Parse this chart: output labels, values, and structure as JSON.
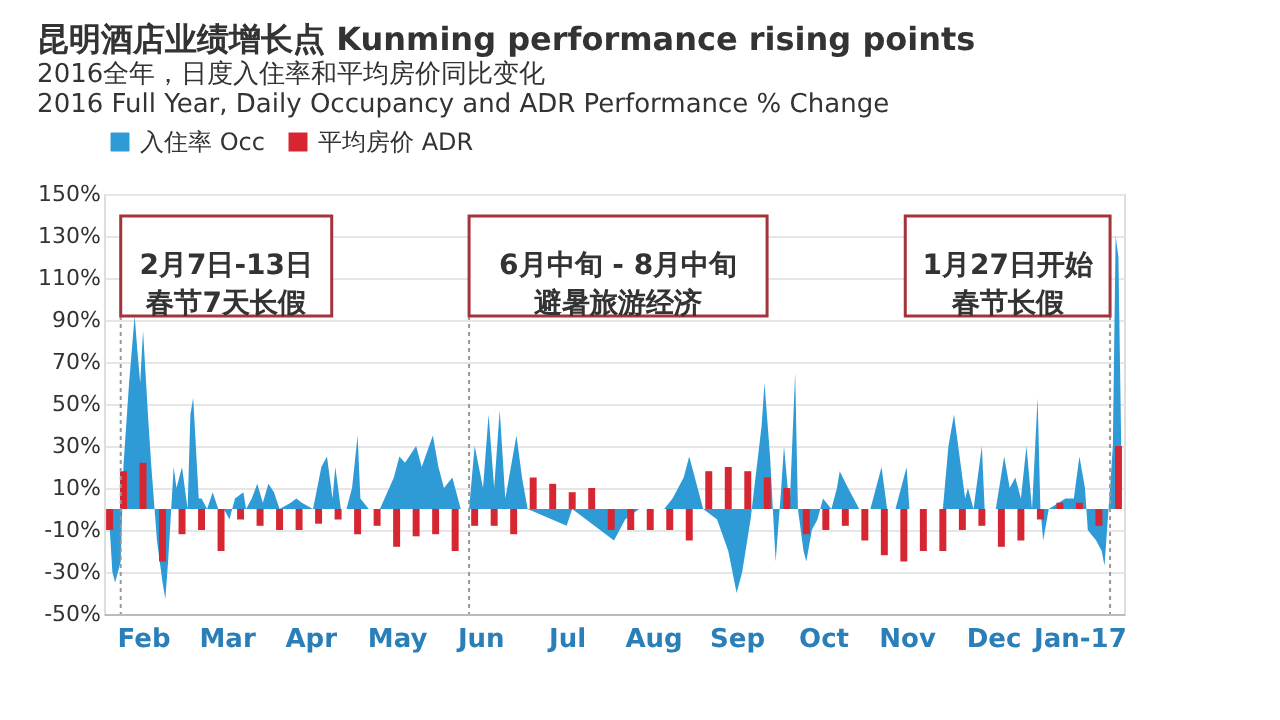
{
  "chart_data": {
    "type": "area",
    "title": "昆明酒店业绩增长点 Kunming performance rising points",
    "subtitle": "2016全年，日度入住率和平均房价同比变化\n2016 Full Year, Daily Occupancy and ADR Performance % Change",
    "xlim": [
      "2016-02-01",
      "2017-02-01"
    ],
    "xticks": [
      {
        "value": "2016-02-15",
        "label": "Feb"
      },
      {
        "value": "2016-03-16",
        "label": "Mar"
      },
      {
        "value": "2016-04-15",
        "label": "Apr"
      },
      {
        "value": "2016-05-16",
        "label": "May"
      },
      {
        "value": "2016-06-15",
        "label": "Jun"
      },
      {
        "value": "2016-07-16",
        "label": "Jul"
      },
      {
        "value": "2016-08-16",
        "label": "Aug"
      },
      {
        "value": "2016-09-15",
        "label": "Sep"
      },
      {
        "value": "2016-10-16",
        "label": "Oct"
      },
      {
        "value": "2016-11-15",
        "label": "Nov"
      },
      {
        "value": "2016-12-16",
        "label": "Dec"
      },
      {
        "value": "2017-01-16",
        "label": "Jan-17"
      }
    ],
    "ylim": [
      -50,
      150
    ],
    "yticks": [
      {
        "value": -50,
        "label": "-50%"
      },
      {
        "value": -30,
        "label": "-30%"
      },
      {
        "value": -10,
        "label": "-10%"
      },
      {
        "value": 10,
        "label": "10%"
      },
      {
        "value": 30,
        "label": "30%"
      },
      {
        "value": 50,
        "label": "50%"
      },
      {
        "value": 70,
        "label": "70%"
      },
      {
        "value": 90,
        "label": "90%"
      },
      {
        "value": 110,
        "label": "110%"
      },
      {
        "value": 130,
        "label": "130%"
      },
      {
        "value": 150,
        "label": "150%"
      }
    ],
    "grid": "y",
    "legend": "top",
    "series": [
      {
        "name": "入住率 Occ",
        "color": "#2e9bd6",
        "x": [
          "2016-02-03",
          "2016-02-04",
          "2016-02-05",
          "2016-02-07",
          "2016-02-08",
          "2016-02-10",
          "2016-02-12",
          "2016-02-13",
          "2016-02-14",
          "2016-02-15",
          "2016-02-17",
          "2016-02-18",
          "2016-02-20",
          "2016-02-22",
          "2016-02-23",
          "2016-02-24",
          "2016-02-26",
          "2016-02-27",
          "2016-02-29",
          "2016-03-02",
          "2016-03-03",
          "2016-03-04",
          "2016-03-06",
          "2016-03-07",
          "2016-03-09",
          "2016-03-11",
          "2016-03-13",
          "2016-03-15",
          "2016-03-17",
          "2016-03-19",
          "2016-03-22",
          "2016-03-23",
          "2016-03-25",
          "2016-03-27",
          "2016-03-29",
          "2016-03-31",
          "2016-04-02",
          "2016-04-04",
          "2016-04-08",
          "2016-04-10",
          "2016-04-12",
          "2016-04-16",
          "2016-04-19",
          "2016-04-21",
          "2016-04-23",
          "2016-04-24",
          "2016-04-26",
          "2016-04-28",
          "2016-04-30",
          "2016-05-02",
          "2016-05-03",
          "2016-05-06",
          "2016-05-10",
          "2016-05-15",
          "2016-05-17",
          "2016-05-19",
          "2016-05-23",
          "2016-05-25",
          "2016-05-29",
          "2016-05-31",
          "2016-06-02",
          "2016-06-05",
          "2016-06-08",
          "2016-06-11",
          "2016-06-13",
          "2016-06-16",
          "2016-06-18",
          "2016-06-20",
          "2016-06-22",
          "2016-06-24",
          "2016-06-26",
          "2016-06-28",
          "2016-06-30",
          "2016-07-02",
          "2016-07-16",
          "2016-07-18",
          "2016-08-02",
          "2016-08-06",
          "2016-08-11",
          "2016-08-20",
          "2016-08-23",
          "2016-08-25",
          "2016-08-27",
          "2016-08-29",
          "2016-09-01",
          "2016-09-03",
          "2016-09-08",
          "2016-09-12",
          "2016-09-15",
          "2016-09-17",
          "2016-09-20",
          "2016-09-24",
          "2016-09-25",
          "2016-09-27",
          "2016-09-29",
          "2016-10-01",
          "2016-10-02",
          "2016-10-04",
          "2016-10-06",
          "2016-10-07",
          "2016-10-09",
          "2016-10-10",
          "2016-10-12",
          "2016-10-14",
          "2016-10-16",
          "2016-10-19",
          "2016-10-21",
          "2016-10-22",
          "2016-10-25",
          "2016-10-27",
          "2016-10-29",
          "2016-11-02",
          "2016-11-04",
          "2016-11-06",
          "2016-11-08",
          "2016-11-11",
          "2016-11-13",
          "2016-11-15",
          "2016-11-16",
          "2016-11-28",
          "2016-11-30",
          "2016-12-02",
          "2016-12-04",
          "2016-12-06",
          "2016-12-07",
          "2016-12-09",
          "2016-12-12",
          "2016-12-13",
          "2016-12-17",
          "2016-12-20",
          "2016-12-22",
          "2016-12-24",
          "2016-12-26",
          "2016-12-28",
          "2016-12-30",
          "2017-01-01",
          "2017-01-02",
          "2017-01-03",
          "2017-01-05",
          "2017-01-11",
          "2017-01-14",
          "2017-01-16",
          "2017-01-18",
          "2017-01-19",
          "2017-01-22",
          "2017-01-24",
          "2017-01-25",
          "2017-01-27",
          "2017-01-28",
          "2017-01-29",
          "2017-01-30",
          "2017-01-31"
        ],
        "values": [
          -8,
          -30,
          -35,
          -25,
          21,
          60,
          92,
          75,
          60,
          85,
          40,
          20,
          -15,
          -35,
          -43,
          -25,
          20,
          10,
          20,
          0,
          45,
          53,
          5,
          5,
          0,
          8,
          0,
          0,
          -5,
          5,
          8,
          0,
          5,
          12,
          3,
          12,
          8,
          0,
          3,
          5,
          3,
          0,
          20,
          25,
          5,
          20,
          0,
          0,
          10,
          35,
          5,
          0,
          0,
          15,
          25,
          22,
          30,
          20,
          35,
          20,
          10,
          15,
          0,
          0,
          30,
          10,
          45,
          10,
          47,
          5,
          20,
          35,
          15,
          0,
          -8,
          0,
          -15,
          -5,
          0,
          0,
          5,
          10,
          15,
          25,
          10,
          0,
          -5,
          -20,
          -40,
          -30,
          -5,
          40,
          60,
          25,
          -25,
          10,
          30,
          0,
          65,
          0,
          -20,
          -25,
          -10,
          -5,
          5,
          0,
          10,
          18,
          10,
          5,
          0,
          0,
          10,
          20,
          0,
          0,
          10,
          20,
          0,
          0,
          30,
          45,
          25,
          5,
          10,
          0,
          30,
          0,
          0,
          25,
          10,
          15,
          5,
          30,
          0,
          53,
          0,
          -15,
          0,
          5,
          5,
          25,
          10,
          -10,
          -15,
          -20,
          -27,
          10,
          30,
          130,
          120,
          30
        ]
      },
      {
        "name": "平均房价 ADR",
        "type": "bar",
        "color": "#d62631",
        "x": [
          "2016-02-03",
          "2016-02-08",
          "2016-02-15",
          "2016-02-22",
          "2016-02-29",
          "2016-03-07",
          "2016-03-14",
          "2016-03-21",
          "2016-03-28",
          "2016-04-04",
          "2016-04-11",
          "2016-04-18",
          "2016-04-25",
          "2016-05-02",
          "2016-05-09",
          "2016-05-16",
          "2016-05-23",
          "2016-05-30",
          "2016-06-06",
          "2016-06-13",
          "2016-06-20",
          "2016-06-27",
          "2016-07-04",
          "2016-07-11",
          "2016-07-18",
          "2016-07-25",
          "2016-08-01",
          "2016-08-08",
          "2016-08-15",
          "2016-08-22",
          "2016-08-29",
          "2016-09-05",
          "2016-09-12",
          "2016-09-19",
          "2016-09-26",
          "2016-10-03",
          "2016-10-10",
          "2016-10-17",
          "2016-10-24",
          "2016-10-31",
          "2016-11-07",
          "2016-11-14",
          "2016-11-21",
          "2016-11-28",
          "2016-12-05",
          "2016-12-12",
          "2016-12-19",
          "2016-12-26",
          "2017-01-02",
          "2017-01-09",
          "2017-01-16",
          "2017-01-23",
          "2017-01-30"
        ],
        "values": [
          -10,
          18,
          22,
          -25,
          -12,
          -10,
          -20,
          -5,
          -8,
          -10,
          -10,
          -7,
          -5,
          -12,
          -8,
          -18,
          -13,
          -12,
          -20,
          -8,
          -8,
          -12,
          15,
          12,
          8,
          10,
          -10,
          -10,
          -10,
          -10,
          -15,
          18,
          20,
          18,
          15,
          10,
          -12,
          -10,
          -8,
          -15,
          -22,
          -25,
          -20,
          -20,
          -10,
          -8,
          -18,
          -15,
          -5,
          3,
          3,
          -8,
          30
        ]
      }
    ],
    "ref_lines": [
      {
        "axis": "x",
        "value": "2016-02-07",
        "label": [
          "2月7日-13日",
          "春节7天长假"
        ],
        "line_style": "dotted",
        "color": "#999999"
      },
      {
        "axis": "x",
        "value": "2016-06-11",
        "label": [
          "6月中旬 - 8月中旬",
          "避暑旅游经济"
        ],
        "line_style": "dotted",
        "color": "#999999"
      },
      {
        "axis": "x",
        "value": "2017-01-27",
        "label": [
          "1月27日开始",
          "春节长假"
        ],
        "line_style": "dotted",
        "color": "#999999"
      }
    ]
  }
}
